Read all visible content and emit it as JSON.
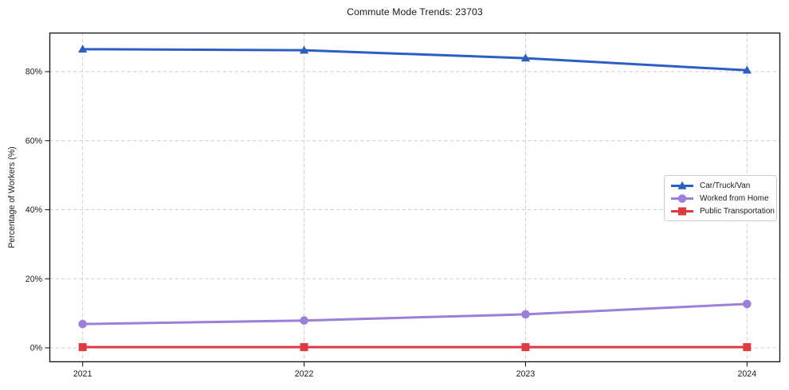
{
  "chart_data": {
    "type": "line",
    "title": "Commute Mode Trends: 23703",
    "xlabel": "",
    "ylabel": "Percentage of Workers (%)",
    "categories": [
      "2021",
      "2022",
      "2023",
      "2024"
    ],
    "x": [
      2021,
      2022,
      2023,
      2024
    ],
    "series": [
      {
        "name": "Car/Truck/Van",
        "values": [
          86.5,
          86.2,
          83.9,
          80.4
        ],
        "color": "#2c5fc4",
        "marker": "triangle"
      },
      {
        "name": "Worked from Home",
        "values": [
          6.9,
          7.9,
          9.7,
          12.7
        ],
        "color": "#9b7fd9",
        "marker": "circle"
      },
      {
        "name": "Public Transportation",
        "values": [
          0.2,
          0.2,
          0.2,
          0.2
        ],
        "color": "#e0393f",
        "marker": "square"
      }
    ],
    "yticks": [
      0,
      20,
      40,
      60,
      80
    ],
    "ytick_labels": [
      "0%",
      "20%",
      "40%",
      "60%",
      "80%"
    ],
    "xlim": [
      2020.85,
      2024.15
    ],
    "ylim": [
      -4.15,
      91.3
    ],
    "grid": true,
    "grid_color": "#cecece",
    "axis_color": "#1c1c1c",
    "tick_label_color": "#1a1a1a",
    "legend_position": "center-right"
  }
}
